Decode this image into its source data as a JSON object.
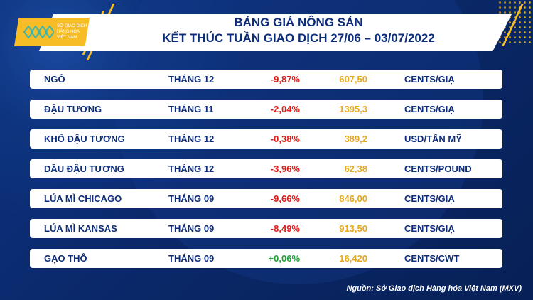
{
  "logo": {
    "text": [
      "SỞ GIAO DỊCH",
      "HÀNG HÓA",
      "VIỆT NAM"
    ]
  },
  "header": {
    "title_line1": "BẢNG GIÁ NÔNG SẢN",
    "title_line2": "KẾT THÚC TUẦN GIAO DỊCH 27/06 – 03/07/2022"
  },
  "rows": [
    {
      "name": "NGÔ",
      "month": "THÁNG 12",
      "change": "-9,87%",
      "price": "607,50",
      "unit": "CENTS/GIẠ"
    },
    {
      "name": "ĐẬU TƯƠNG",
      "month": "THÁNG 11",
      "change": "-2,04%",
      "price": "1395,3",
      "unit": "CENTS/GIẠ"
    },
    {
      "name": "KHÔ ĐẬU TƯƠNG",
      "month": "THÁNG 12",
      "change": "-0,38%",
      "price": "389,2",
      "unit": "USD/TẤN MỸ"
    },
    {
      "name": "DẦU ĐẬU TƯƠNG",
      "month": "THÁNG 12",
      "change": "-3,96%",
      "price": "62,38",
      "unit": "CENTS/POUND"
    },
    {
      "name": "LÚA MÌ CHICAGO",
      "month": "THÁNG 09",
      "change": "-9,66%",
      "price": "846,00",
      "unit": "CENTS/GIẠ"
    },
    {
      "name": "LÚA MÌ KANSAS",
      "month": "THÁNG 09",
      "change": "-8,49%",
      "price": "913,50",
      "unit": "CENTS/GIẠ"
    },
    {
      "name": "GẠO THÔ",
      "month": "THÁNG 09",
      "change": "+0,06%",
      "price": "16,420",
      "unit": "CENTS/CWT"
    }
  ],
  "colors": {
    "negative": "#e01d1d",
    "positive": "#22a23a",
    "price": "#e6a91c",
    "text": "#0d2d78",
    "background": "#0b2a6b",
    "accent": "#f6bd26"
  },
  "source": "Nguồn: Sở Giao dịch Hàng hóa Việt Nam (MXV)"
}
